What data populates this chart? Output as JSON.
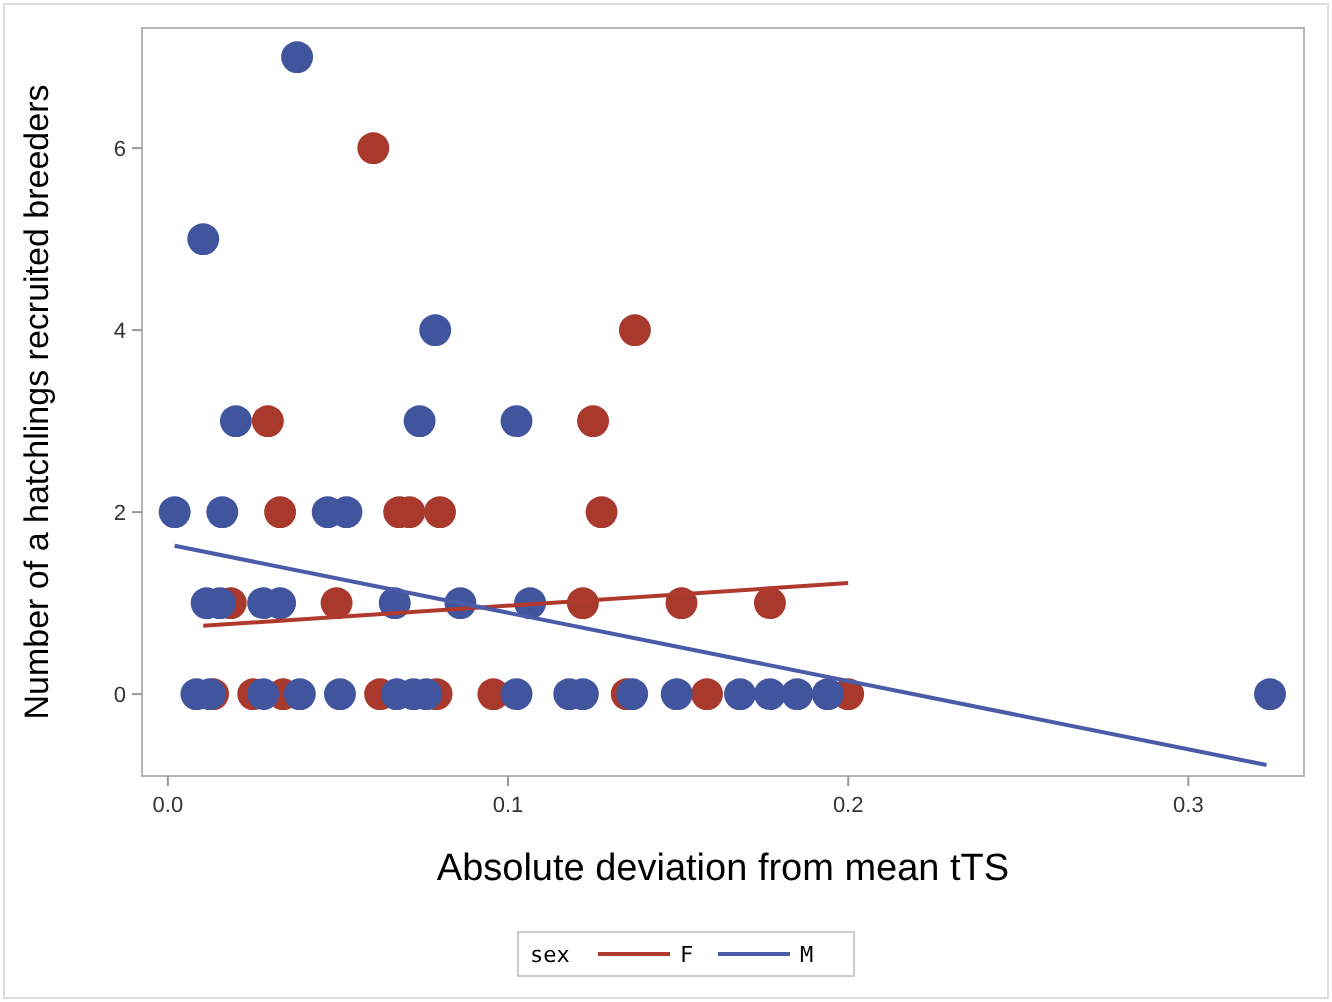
{
  "chart_data": {
    "type": "scatter",
    "xlabel": "Absolute deviation from mean tTS",
    "ylabel": "Number of a hatchlings recruited breeders",
    "legend_title": "sex",
    "legend": "bottom",
    "grid": false,
    "xlim": [
      -0.0076,
      0.334
    ],
    "ylim": [
      -0.9,
      7.32
    ],
    "xticks": [
      {
        "value": 0,
        "label": "0.0"
      },
      {
        "value": 0.1,
        "label": "0.1"
      },
      {
        "value": 0.2,
        "label": "0.2"
      },
      {
        "value": 0.3,
        "label": "0.3"
      }
    ],
    "yticks": [
      0,
      2,
      4,
      6
    ],
    "series": [
      {
        "marker": "circle",
        "color": "#a9382d",
        "x": [
          0.0604,
          0.1373,
          0.0294,
          0.125,
          0.033,
          0.068,
          0.071,
          0.08,
          0.1275,
          0.0185,
          0.0496,
          0.122,
          0.151,
          0.177,
          0.0133,
          0.0251,
          0.0339,
          0.0624,
          0.079,
          0.0957,
          0.1349,
          0.1585,
          0.2
        ],
        "values": [
          6,
          4,
          3,
          3,
          2,
          2,
          2,
          2,
          2,
          1,
          1,
          1,
          1,
          1,
          0,
          0,
          0,
          0,
          0,
          0,
          0,
          0,
          0
        ]
      },
      {
        "marker": "circle",
        "color": "#41559e",
        "x": [
          0.038,
          0.0104,
          0.0786,
          0.02,
          0.074,
          0.1025,
          0.002,
          0.016,
          0.047,
          0.0525,
          0.0114,
          0.0153,
          0.028,
          0.033,
          0.0667,
          0.086,
          0.1065,
          0.0084,
          0.0124,
          0.028,
          0.0388,
          0.0506,
          0.0673,
          0.0722,
          0.076,
          0.1025,
          0.118,
          0.122,
          0.1365,
          0.1496,
          0.1682,
          0.177,
          0.185,
          0.194,
          0.324
        ],
        "values": [
          7,
          5,
          4,
          3,
          3,
          3,
          2,
          2,
          2,
          2,
          1,
          1,
          1,
          1,
          1,
          1,
          1,
          0,
          0,
          0,
          0,
          0,
          0,
          0,
          0,
          0,
          0,
          0,
          0,
          0,
          0,
          0,
          0,
          0,
          0
        ]
      },
      {
        "type": "line",
        "marker": "none",
        "name": "F",
        "color": "#b0392e",
        "x": [
          0.0104,
          0.2
        ],
        "values": [
          0.75,
          1.22
        ]
      },
      {
        "type": "line",
        "marker": "none",
        "name": "M",
        "color": "#4a5ba8",
        "x": [
          0.002,
          0.323
        ],
        "values": [
          1.63,
          -0.78
        ]
      }
    ]
  }
}
